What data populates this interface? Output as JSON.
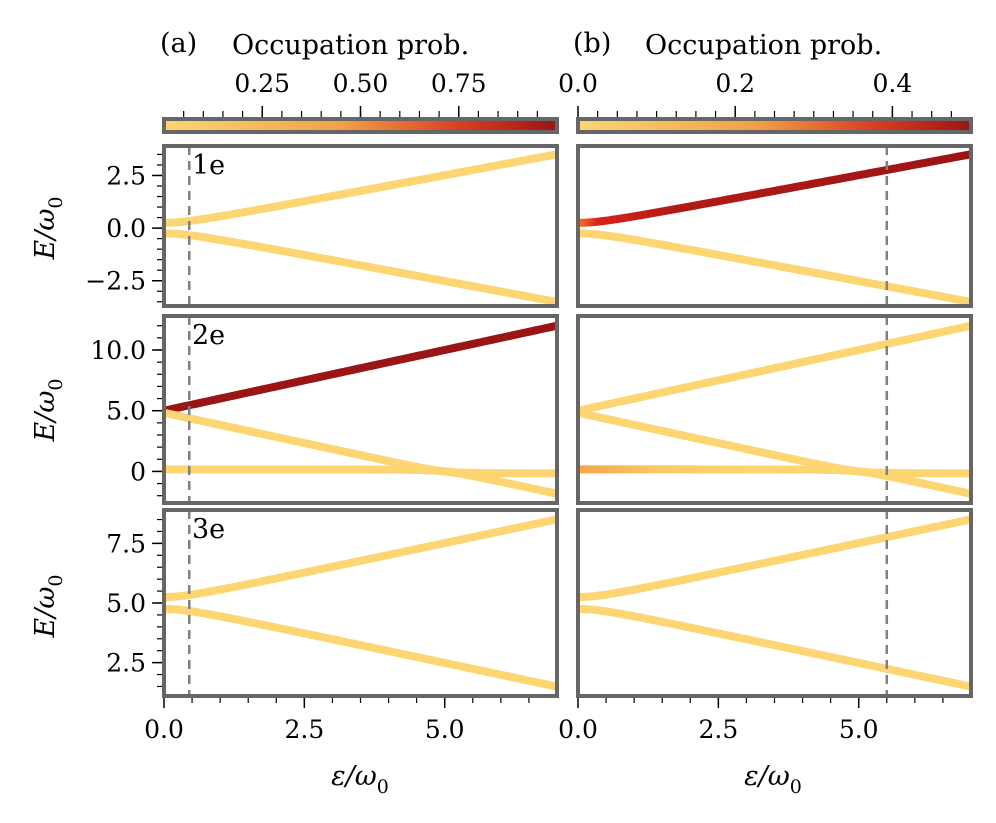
{
  "chart_data": {
    "type": "line",
    "description_labels": {
      "x_label": "ε/ω",
      "x_label_sub": "0",
      "y_label": "E/ω",
      "y_label_sub": "0"
    },
    "colorbars": [
      {
        "panel_tag": "(a)",
        "title": "Occupation prob.",
        "range": [
          0.0,
          1.0
        ],
        "ticks": [
          0.25,
          0.5,
          0.75
        ],
        "tick_labels": [
          "0.25",
          "0.50",
          "0.75"
        ]
      },
      {
        "panel_tag": "(b)",
        "title": "Occupation prob.",
        "range": [
          0.0,
          0.5
        ],
        "ticks": [
          0.0,
          0.2,
          0.4
        ],
        "tick_labels": [
          "0.0",
          "0.2",
          "0.4"
        ]
      }
    ],
    "x_axis": {
      "range": [
        0,
        7
      ],
      "ticks": [
        0,
        2.5,
        5
      ],
      "tick_labels": [
        "0.0",
        "2.5",
        "5.0"
      ]
    },
    "colors": {
      "frame": "#666666",
      "low": "#fbd672",
      "mid": "#f4762a",
      "high": "#9a1515",
      "vline": "#808080"
    },
    "rows": [
      {
        "label": "1e",
        "ylim": [
          -3.7,
          3.9
        ],
        "yticks": [
          -2.5,
          0,
          2.5
        ],
        "ytick_labels": [
          "−2.5",
          "0.0",
          "2.5"
        ],
        "branches": [
          {
            "name": "upper",
            "formula": "hyperbola",
            "offset": 0,
            "gap": 0.25,
            "slope": 0.5,
            "sign": 1
          },
          {
            "name": "lower",
            "formula": "hyperbola",
            "offset": 0,
            "gap": 0.25,
            "slope": 0.5,
            "sign": -1
          }
        ],
        "panels": [
          {
            "vline_x": 0.45,
            "branch_colors": {
              "upper": "low",
              "lower": "low"
            }
          },
          {
            "vline_x": 5.5,
            "branch_colors": {
              "upper": "high_red_start",
              "lower": "low"
            }
          }
        ]
      },
      {
        "label": "2e",
        "ylim": [
          -2.6,
          12.8
        ],
        "yticks": [
          0,
          5,
          10
        ],
        "ytick_labels": [
          "0",
          "5.0",
          "10.0"
        ],
        "branches": [
          {
            "name": "upper",
            "formula": "linear",
            "a": 5.0,
            "b": 1.0
          },
          {
            "name": "middle",
            "formula": "cross",
            "a": 5.0,
            "b": -1.0
          },
          {
            "name": "flat",
            "formula": "flat",
            "a": 0.0
          }
        ],
        "panels": [
          {
            "vline_x": 0.45,
            "branch_colors": {
              "upper": "high",
              "middle": "low",
              "flat": "low"
            }
          },
          {
            "vline_x": 5.5,
            "branch_colors": {
              "upper": "low",
              "middle": "low",
              "flat": "low_orange_start"
            }
          }
        ]
      },
      {
        "label": "3e",
        "ylim": [
          1.1,
          8.9
        ],
        "yticks": [
          2.5,
          5.0,
          7.5
        ],
        "ytick_labels": [
          "2.5",
          "5.0",
          "7.5"
        ],
        "branches": [
          {
            "name": "upper",
            "formula": "hyperbola",
            "offset": 5.0,
            "gap": 0.25,
            "slope": 0.5,
            "sign": 1
          },
          {
            "name": "lower",
            "formula": "hyperbola",
            "offset": 5.0,
            "gap": 0.25,
            "slope": 0.5,
            "sign": -1
          }
        ],
        "panels": [
          {
            "vline_x": 0.45,
            "branch_colors": {
              "upper": "low",
              "lower": "low"
            }
          },
          {
            "vline_x": 5.5,
            "branch_colors": {
              "upper": "low",
              "lower": "low"
            }
          }
        ]
      }
    ]
  }
}
